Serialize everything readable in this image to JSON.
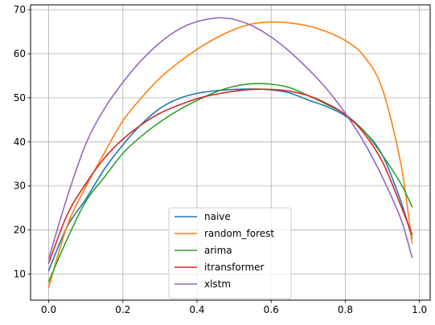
{
  "chart_data": {
    "type": "line",
    "title": "",
    "xlabel": "",
    "ylabel": "",
    "xlim": [
      -0.049,
      1.029
    ],
    "ylim": [
      4.1,
      71.1
    ],
    "xticks": [
      0.0,
      0.2,
      0.4,
      0.6,
      0.8,
      1.0
    ],
    "xtick_labels": [
      "0.0",
      "0.2",
      "0.4",
      "0.6",
      "0.8",
      "1.0"
    ],
    "yticks": [
      10,
      20,
      30,
      40,
      50,
      60,
      70
    ],
    "ytick_labels": [
      "10",
      "20",
      "30",
      "40",
      "50",
      "60",
      "70"
    ],
    "grid": true,
    "legend_position": "lower-center",
    "series": [
      {
        "name": "naive",
        "color": "#1f77b4",
        "x": [
          0.0,
          0.05,
          0.1,
          0.15,
          0.2,
          0.25,
          0.3,
          0.35,
          0.4,
          0.45,
          0.5,
          0.55,
          0.6,
          0.65,
          0.7,
          0.75,
          0.8,
          0.85,
          0.9,
          0.95,
          0.98
        ],
        "y": [
          10.8,
          20.8,
          27.0,
          33.8,
          39.3,
          44.0,
          47.6,
          49.8,
          51.0,
          51.6,
          51.9,
          52.0,
          51.8,
          51.1,
          49.5,
          48.0,
          45.9,
          42.5,
          37.0,
          26.5,
          18.2
        ]
      },
      {
        "name": "random_forest",
        "color": "#ff7f0e",
        "x": [
          0.0,
          0.05,
          0.1,
          0.15,
          0.2,
          0.25,
          0.3,
          0.35,
          0.4,
          0.45,
          0.5,
          0.55,
          0.6,
          0.65,
          0.7,
          0.75,
          0.8,
          0.85,
          0.9,
          0.95,
          0.98
        ],
        "y": [
          7.0,
          21.0,
          29.8,
          37.5,
          44.8,
          50.0,
          54.5,
          58.0,
          61.0,
          63.5,
          65.5,
          66.8,
          67.2,
          67.0,
          66.3,
          65.0,
          63.0,
          59.5,
          52.0,
          35.0,
          17.1
        ]
      },
      {
        "name": "arima",
        "color": "#2ca02c",
        "x": [
          0.0,
          0.05,
          0.1,
          0.15,
          0.2,
          0.25,
          0.3,
          0.35,
          0.4,
          0.45,
          0.5,
          0.55,
          0.6,
          0.65,
          0.7,
          0.75,
          0.8,
          0.85,
          0.9,
          0.95,
          0.98
        ],
        "y": [
          8.3,
          18.0,
          26.5,
          32.0,
          37.4,
          41.3,
          44.5,
          47.2,
          49.4,
          51.3,
          52.6,
          53.2,
          53.1,
          52.3,
          50.5,
          48.5,
          46.2,
          42.5,
          37.0,
          30.5,
          25.3
        ]
      },
      {
        "name": "itransformer",
        "color": "#d62728",
        "x": [
          0.0,
          0.05,
          0.1,
          0.15,
          0.2,
          0.25,
          0.3,
          0.35,
          0.4,
          0.45,
          0.5,
          0.55,
          0.6,
          0.65,
          0.7,
          0.75,
          0.8,
          0.85,
          0.9,
          0.95,
          0.98
        ],
        "y": [
          12.5,
          23.5,
          30.5,
          36.3,
          40.6,
          43.9,
          46.5,
          48.3,
          49.8,
          50.8,
          51.5,
          51.9,
          51.9,
          51.5,
          50.5,
          48.7,
          46.2,
          42.0,
          35.5,
          25.5,
          19.0
        ]
      },
      {
        "name": "xlstm",
        "color": "#9467bd",
        "x": [
          0.0,
          0.05,
          0.1,
          0.15,
          0.2,
          0.25,
          0.3,
          0.35,
          0.4,
          0.45,
          0.47,
          0.5,
          0.55,
          0.6,
          0.65,
          0.7,
          0.75,
          0.8,
          0.85,
          0.9,
          0.95,
          0.98
        ],
        "y": [
          13.5,
          27.5,
          39.5,
          47.5,
          53.5,
          58.5,
          62.5,
          65.5,
          67.3,
          68.1,
          68.1,
          67.8,
          66.3,
          63.8,
          60.5,
          56.5,
          52.0,
          46.5,
          40.0,
          32.0,
          22.5,
          13.8
        ]
      }
    ]
  }
}
